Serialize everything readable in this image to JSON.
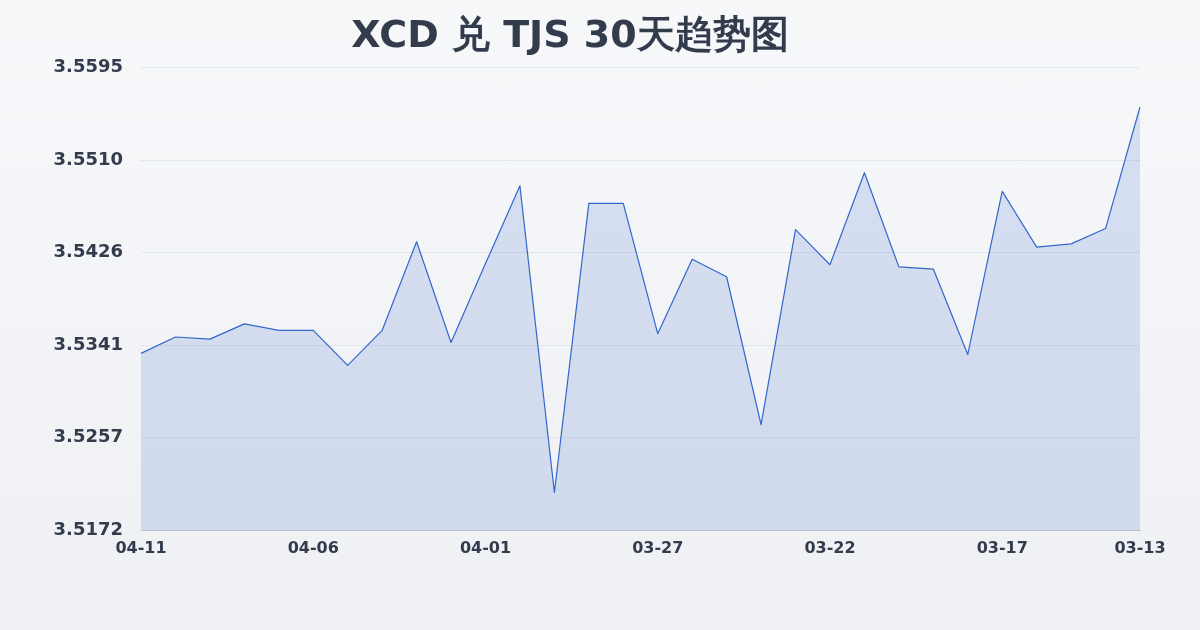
{
  "chart_data": {
    "type": "area",
    "title": "XCD 兑 TJS 30天趋势图",
    "categories": [
      "04-11",
      null,
      null,
      null,
      null,
      "04-06",
      null,
      null,
      null,
      null,
      "04-01",
      null,
      null,
      null,
      null,
      "03-27",
      null,
      null,
      null,
      null,
      "03-22",
      null,
      null,
      null,
      null,
      "03-17",
      null,
      null,
      null,
      "03-13"
    ],
    "series": [
      {
        "color": "#3366cc",
        "values": [
          3.5334,
          3.5349,
          3.5347,
          3.5361,
          3.5355,
          3.5355,
          3.5323,
          3.5355,
          3.5436,
          3.5344,
          3.5416,
          3.5487,
          3.5207,
          3.5471,
          3.5471,
          3.5352,
          3.542,
          3.5404,
          3.5269,
          3.5447,
          3.5415,
          3.5499,
          3.5413,
          3.5411,
          3.5333,
          3.5482,
          3.5431,
          3.5434,
          3.5448,
          3.5559
        ]
      }
    ],
    "ylim": [
      3.5172,
      3.5595
    ],
    "yticks": [
      3.5172,
      3.5257,
      3.5341,
      3.5426,
      {
        "value": 3.551,
        "label": "3.5510"
      },
      3.5595
    ],
    "grid": "y",
    "marker": "none"
  }
}
